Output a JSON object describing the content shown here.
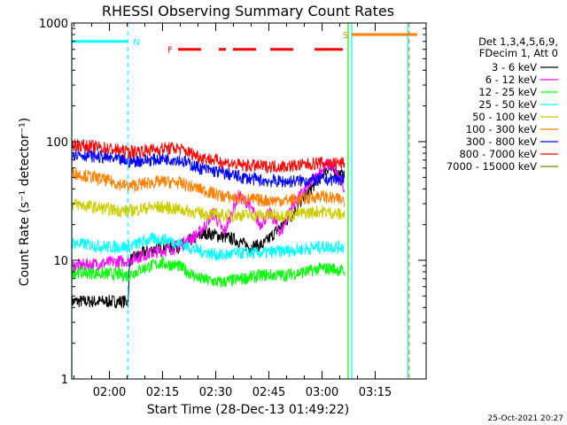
{
  "chart_data": {
    "type": "line",
    "title": "RHESSI Observing Summary Count Rates",
    "xlabel": "Start Time (28-Dec-13 01:49:22)",
    "ylabel": "Count Rate (s⁻¹ detector⁻¹)",
    "x_ticks": [
      "02:00",
      "02:15",
      "02:30",
      "02:45",
      "03:00",
      "03:15"
    ],
    "x_tick_minutes": [
      10.63,
      25.63,
      40.63,
      55.63,
      70.63,
      85.63
    ],
    "xlim_minutes": [
      0,
      100
    ],
    "y_scale": "log",
    "ylim": [
      1,
      1000
    ],
    "y_ticks": [
      "1",
      "10",
      "100",
      "1000"
    ],
    "y_tick_values": [
      1,
      10,
      100,
      1000
    ],
    "legend_header": [
      "Det 1,3,4,5,6,9,",
      "FDecim 1, Att 0"
    ],
    "legend_position": "right",
    "series": [
      {
        "name": "3 - 6 keV",
        "color": "#000000",
        "points": [
          [
            0,
            4.5
          ],
          [
            16,
            4.5
          ],
          [
            16.3,
            10
          ],
          [
            20,
            11.5
          ],
          [
            25,
            13
          ],
          [
            30,
            13
          ],
          [
            34,
            15
          ],
          [
            38,
            17
          ],
          [
            42,
            16
          ],
          [
            46,
            15
          ],
          [
            50,
            13
          ],
          [
            54,
            13.5
          ],
          [
            58,
            18
          ],
          [
            62,
            24
          ],
          [
            66,
            35
          ],
          [
            70,
            50
          ],
          [
            72,
            60
          ],
          [
            75,
            55
          ],
          [
            77,
            50
          ]
        ]
      },
      {
        "name": "6 - 12 keV",
        "color": "#ff00ff",
        "points": [
          [
            0,
            9
          ],
          [
            10,
            9.5
          ],
          [
            16,
            10
          ],
          [
            20,
            11
          ],
          [
            25,
            12
          ],
          [
            30,
            13
          ],
          [
            36,
            17
          ],
          [
            40,
            25
          ],
          [
            43,
            17
          ],
          [
            47,
            35
          ],
          [
            50,
            30
          ],
          [
            53,
            20
          ],
          [
            56,
            25
          ],
          [
            59,
            17
          ],
          [
            62,
            28
          ],
          [
            66,
            40
          ],
          [
            70,
            55
          ],
          [
            72,
            65
          ],
          [
            74,
            60
          ],
          [
            77,
            40
          ]
        ]
      },
      {
        "name": "12 - 25 keV",
        "color": "#00ff00",
        "points": [
          [
            0,
            8
          ],
          [
            16,
            7.5
          ],
          [
            20,
            8.5
          ],
          [
            25,
            9.5
          ],
          [
            30,
            9
          ],
          [
            36,
            7
          ],
          [
            42,
            6.5
          ],
          [
            48,
            7
          ],
          [
            54,
            7.5
          ],
          [
            60,
            7.5
          ],
          [
            66,
            8
          ],
          [
            70,
            8.5
          ],
          [
            74,
            8.5
          ],
          [
            77,
            8
          ]
        ]
      },
      {
        "name": "25 - 50 keV",
        "color": "#00ffff",
        "points": [
          [
            0,
            14
          ],
          [
            10,
            13
          ],
          [
            16,
            13
          ],
          [
            22,
            15
          ],
          [
            26,
            15
          ],
          [
            30,
            14
          ],
          [
            36,
            12
          ],
          [
            42,
            11
          ],
          [
            48,
            11.5
          ],
          [
            54,
            11.5
          ],
          [
            60,
            12
          ],
          [
            66,
            12.5
          ],
          [
            70,
            13
          ],
          [
            74,
            13
          ],
          [
            77,
            13
          ]
        ]
      },
      {
        "name": "50 - 100 keV",
        "color": "#cccc00",
        "points": [
          [
            0,
            30
          ],
          [
            10,
            27
          ],
          [
            16,
            26
          ],
          [
            22,
            28
          ],
          [
            26,
            28
          ],
          [
            30,
            27
          ],
          [
            36,
            25
          ],
          [
            42,
            24
          ],
          [
            48,
            24
          ],
          [
            54,
            24
          ],
          [
            60,
            24
          ],
          [
            66,
            25
          ],
          [
            70,
            26
          ],
          [
            74,
            25
          ],
          [
            77,
            24
          ]
        ]
      },
      {
        "name": "100 - 300 keV",
        "color": "#ff7f00",
        "points": [
          [
            0,
            55
          ],
          [
            10,
            47
          ],
          [
            16,
            42
          ],
          [
            22,
            45
          ],
          [
            26,
            46
          ],
          [
            30,
            45
          ],
          [
            36,
            40
          ],
          [
            42,
            35
          ],
          [
            48,
            33
          ],
          [
            54,
            32
          ],
          [
            60,
            32
          ],
          [
            66,
            33
          ],
          [
            70,
            35
          ],
          [
            74,
            33
          ],
          [
            77,
            32
          ]
        ]
      },
      {
        "name": "300 - 800 keV",
        "color": "#0000ff",
        "points": [
          [
            0,
            80
          ],
          [
            10,
            73
          ],
          [
            16,
            68
          ],
          [
            22,
            70
          ],
          [
            26,
            72
          ],
          [
            30,
            71
          ],
          [
            36,
            60
          ],
          [
            42,
            55
          ],
          [
            48,
            50
          ],
          [
            54,
            47
          ],
          [
            60,
            46
          ],
          [
            66,
            47
          ],
          [
            70,
            48
          ],
          [
            74,
            48
          ],
          [
            77,
            48
          ]
        ]
      },
      {
        "name": "800 - 7000 keV",
        "color": "#ff0000",
        "points": [
          [
            0,
            95
          ],
          [
            10,
            88
          ],
          [
            16,
            82
          ],
          [
            22,
            85
          ],
          [
            26,
            88
          ],
          [
            30,
            88
          ],
          [
            36,
            75
          ],
          [
            42,
            68
          ],
          [
            48,
            63
          ],
          [
            54,
            62
          ],
          [
            60,
            62
          ],
          [
            66,
            64
          ],
          [
            70,
            66
          ],
          [
            74,
            66
          ],
          [
            77,
            66
          ]
        ]
      },
      {
        "name": "7000 - 15000 keV",
        "color": "#7f7f00",
        "points": []
      }
    ],
    "markers": [
      {
        "label": "N",
        "color": "#00ffff",
        "start": 0,
        "end": 15.8,
        "level": 700
      },
      {
        "label": "S",
        "color": "#ff7f00",
        "start": 79,
        "end": 97.5,
        "level": 800
      },
      {
        "label": "F",
        "color": "#ff0000",
        "segments": [
          [
            30,
            36.5
          ],
          [
            41.5,
            43.5
          ],
          [
            45.5,
            52
          ],
          [
            56,
            62.5
          ],
          [
            68.5,
            76.5
          ]
        ],
        "level": 600
      }
    ],
    "vlines": [
      {
        "minute": 0,
        "color": "#00ffff",
        "style": "solid"
      },
      {
        "minute": 15.8,
        "color": "#00ffff",
        "style": "dashed"
      },
      {
        "minute": 79,
        "color": "#00ffff",
        "style": "solid"
      },
      {
        "minute": 78,
        "color": "#00ff00",
        "style": "solid"
      },
      {
        "minute": 94.8,
        "color": "#00ffff",
        "style": "solid"
      },
      {
        "minute": 95.2,
        "color": "#ff7f00",
        "style": "dashed"
      }
    ],
    "footer_timestamp": "25-Oct-2021 20:27"
  }
}
